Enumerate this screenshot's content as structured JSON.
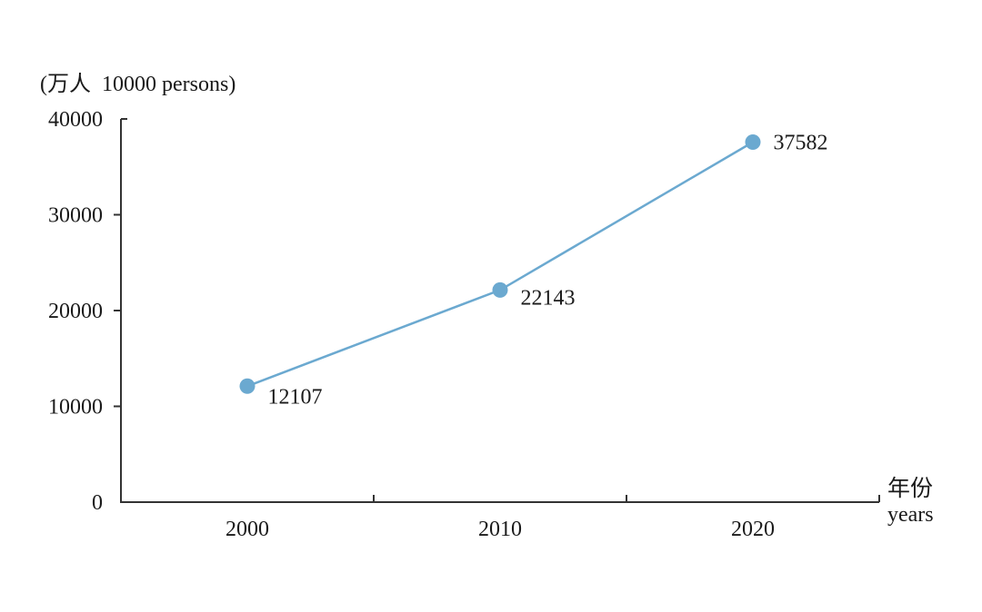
{
  "chart": {
    "unit_label": "(万人  10000 persons)",
    "x_axis_label_cn": "年份",
    "x_axis_label_en": "years"
  },
  "colors": {
    "line": "#6BA9D0",
    "marker": "#6BA9D0",
    "axis": "#333333",
    "text": "#1a1a1a",
    "background": "#ffffff"
  },
  "chart_data": {
    "type": "line",
    "title": "(万人 10000 persons)",
    "categories": [
      "2000",
      "2010",
      "2020"
    ],
    "values": [
      12107,
      22143,
      37582
    ],
    "data_labels": [
      "12107",
      "22143",
      "37582"
    ],
    "xlabel": "年份 years",
    "ylabel": "万人 10000 persons",
    "ylim": [
      0,
      40000
    ],
    "yticks": [
      0,
      10000,
      20000,
      30000,
      40000
    ],
    "grid": false,
    "legend": "none",
    "marker": "circle"
  }
}
